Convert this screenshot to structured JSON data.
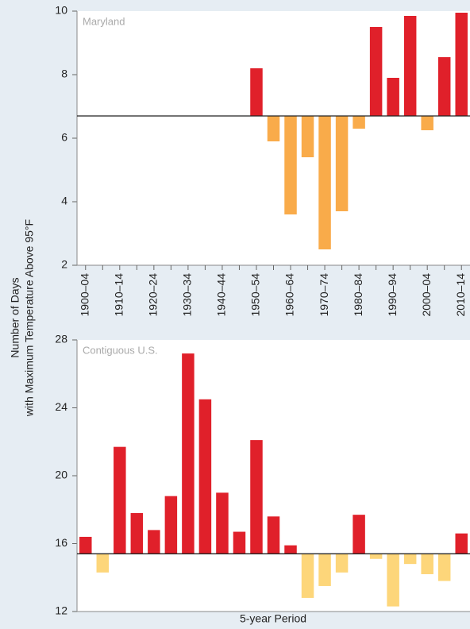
{
  "chart_data": [
    {
      "type": "bar",
      "panel_label": "Maryland",
      "y_label": [
        "Number of Days",
        "with Maximum Temperature Above 95°F"
      ],
      "categories": [
        "1900–04",
        null,
        "1910–14",
        null,
        "1920–24",
        null,
        "1930–34",
        null,
        "1940–44",
        null,
        "1950–54",
        null,
        "1960–64",
        null,
        "1970–74",
        null,
        "1980–84",
        null,
        "1990–94",
        null,
        "2000–04",
        null,
        "2010–14"
      ],
      "values": [
        null,
        null,
        null,
        null,
        null,
        null,
        null,
        null,
        null,
        null,
        8.2,
        5.9,
        3.6,
        5.4,
        2.5,
        3.7,
        6.3,
        9.5,
        7.9,
        9.85,
        6.25,
        8.55,
        9.95
      ],
      "baseline": 6.7,
      "color_above": "#e0202a",
      "color_below": "#f9ab4a",
      "ylim": [
        2,
        10
      ],
      "yticks": [
        2,
        4,
        6,
        8,
        10
      ]
    },
    {
      "type": "bar",
      "panel_label": "Contiguous U.S.",
      "x_label": "5-year Period",
      "values": [
        16.4,
        14.3,
        21.7,
        17.8,
        16.8,
        18.8,
        27.2,
        24.5,
        19.0,
        16.7,
        22.1,
        17.6,
        15.9,
        12.8,
        13.5,
        14.3,
        17.7,
        15.1,
        12.3,
        14.8,
        14.2,
        13.8,
        16.6
      ],
      "baseline": 15.4,
      "color_above": "#e0202a",
      "color_below": "#fdd67a",
      "ylim": [
        12,
        28
      ],
      "yticks": [
        12,
        16,
        20,
        24,
        28
      ]
    }
  ]
}
